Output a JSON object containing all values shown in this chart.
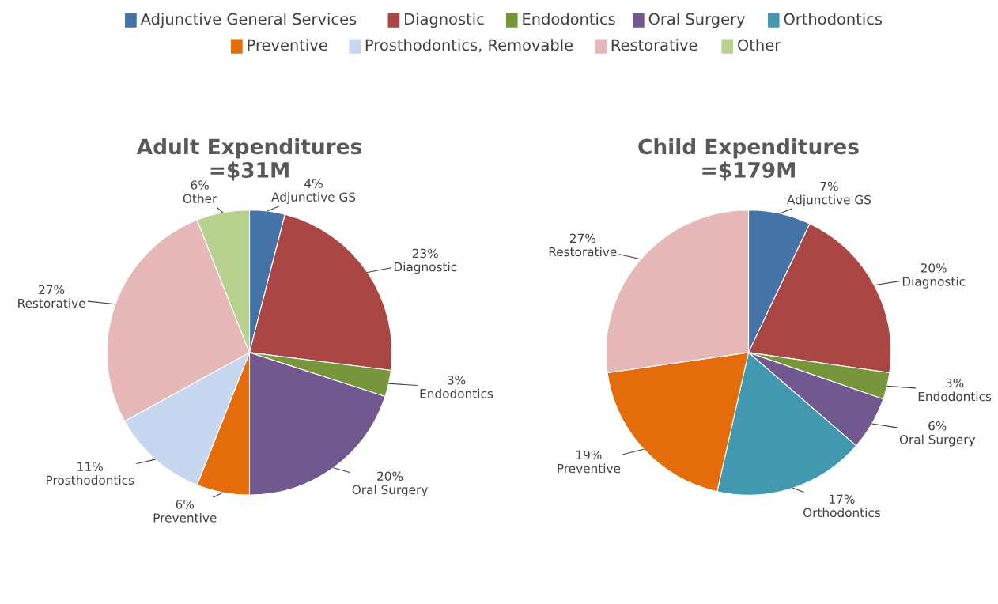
{
  "chart_data": [
    {
      "type": "other",
      "categories": [
        "Adjunctive General Services",
        "Diagnostic",
        "Endodontics",
        "Oral Surgery",
        "Orthodontics",
        "Preventive",
        "Prosthodontics, Removable",
        "Restorative",
        "Other"
      ],
      "colors": [
        "#4572a7",
        "#aa4643",
        "#77963b",
        "#71588f",
        "#4198af",
        "#e46c0a",
        "#c6d7ef",
        "#e6b9b8",
        "#b9d18f"
      ]
    },
    {
      "type": "pie",
      "title": "Adult Expenditures\n=$31M",
      "categories": [
        "Adjunctive GS",
        "Diagnostic",
        "Endodontics",
        "Oral Surgery",
        "Preventive",
        "Prosthodontics",
        "Restorative",
        "Other"
      ],
      "values": [
        4,
        23,
        3,
        20,
        6,
        11,
        27,
        6
      ],
      "value_labels": [
        "4%",
        "23%",
        "3%",
        "20%",
        "6%",
        "11%",
        "27%",
        "6%"
      ],
      "colors": [
        "#4572a7",
        "#aa4643",
        "#77963b",
        "#71588f",
        "#e46c0a",
        "#c6d7ef",
        "#e6b9b8",
        "#b9d18f"
      ]
    },
    {
      "type": "pie",
      "title": "Child Expenditures\n=$179M",
      "categories": [
        "Adjunctive GS",
        "Diagnostic",
        "Endodontics",
        "Oral Surgery",
        "Orthodontics",
        "Preventive",
        "Restorative"
      ],
      "values": [
        7,
        20,
        3,
        6,
        17,
        19,
        27
      ],
      "value_labels": [
        "7%",
        "20%",
        "3%",
        "6%",
        "17%",
        "19%",
        "27%"
      ],
      "colors": [
        "#4572a7",
        "#aa4643",
        "#77963b",
        "#71588f",
        "#4198af",
        "#e46c0a",
        "#e6b9b8"
      ]
    }
  ]
}
